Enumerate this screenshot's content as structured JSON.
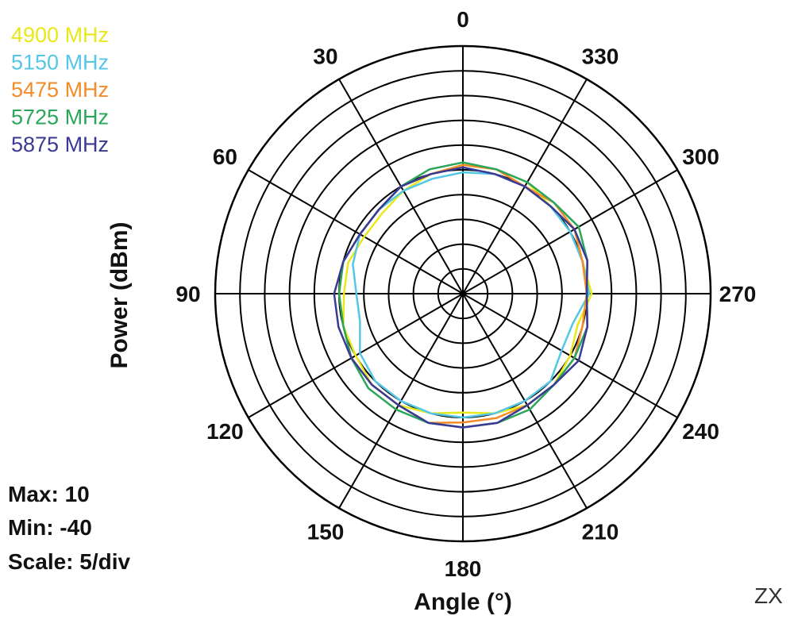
{
  "chart_data": {
    "type": "polar-line",
    "xlabel": "Angle (°)",
    "ylabel": "Power (dBm)",
    "plane_label": "ZX",
    "stats": {
      "max": "Max: 10",
      "min": "Min: -40",
      "scale": "Scale: 5/div"
    },
    "rmax": 10,
    "rmin": -40,
    "scale_per_div": 5,
    "angle_direction": "counterclockwise, 0 at top",
    "angle_ticks": [
      "0",
      "30",
      "60",
      "90",
      "120",
      "150",
      "180",
      "210",
      "240",
      "270",
      "300",
      "330"
    ],
    "angles": [
      0,
      15,
      30,
      45,
      60,
      75,
      90,
      105,
      120,
      135,
      150,
      165,
      180,
      195,
      210,
      225,
      240,
      255,
      270,
      285,
      300,
      315,
      330,
      345
    ],
    "series": [
      {
        "name": "4900 MHz",
        "color": "#e8e81a",
        "values": [
          -14,
          -15,
          -16,
          -17,
          -17,
          -16,
          -16,
          -15,
          -15,
          -14,
          -14,
          -15,
          -16,
          -15,
          -14,
          -14,
          -15,
          -16,
          -14,
          -15,
          -14,
          -15,
          -14,
          -14
        ]
      },
      {
        "name": "5150 MHz",
        "color": "#55c7e6",
        "values": [
          -15.5,
          -16,
          -16,
          -16,
          -16,
          -17,
          -18.5,
          -18.5,
          -16,
          -15,
          -15,
          -15,
          -15,
          -15,
          -15,
          -15,
          -17,
          -17,
          -14.5,
          -15,
          -15,
          -15,
          -15,
          -15
        ]
      },
      {
        "name": "5475 MHz",
        "color": "#f28c28",
        "values": [
          -14,
          -15,
          -15,
          -16,
          -16,
          -15,
          -15,
          -15,
          -14,
          -14,
          -14,
          -13,
          -14,
          -14,
          -14,
          -14,
          -14,
          -15,
          -15,
          -15,
          -14,
          -14,
          -15,
          -14
        ]
      },
      {
        "name": "5725 MHz",
        "color": "#2aa65a",
        "values": [
          -13.5,
          -14,
          -15,
          -16,
          -16,
          -15,
          -15,
          -15,
          -14,
          -13,
          -13,
          -13,
          -13,
          -13,
          -13,
          -14,
          -14,
          -14,
          -15,
          -14,
          -13,
          -14,
          -14,
          -14
        ]
      },
      {
        "name": "5875 MHz",
        "color": "#3a3a96",
        "values": [
          -14.5,
          -15,
          -15,
          -16,
          -16,
          -15,
          -14,
          -14,
          -14,
          -14,
          -14,
          -13,
          -13,
          -13,
          -14,
          -14,
          -13,
          -14,
          -15,
          -14,
          -14,
          -15,
          -15,
          -15
        ]
      }
    ]
  }
}
